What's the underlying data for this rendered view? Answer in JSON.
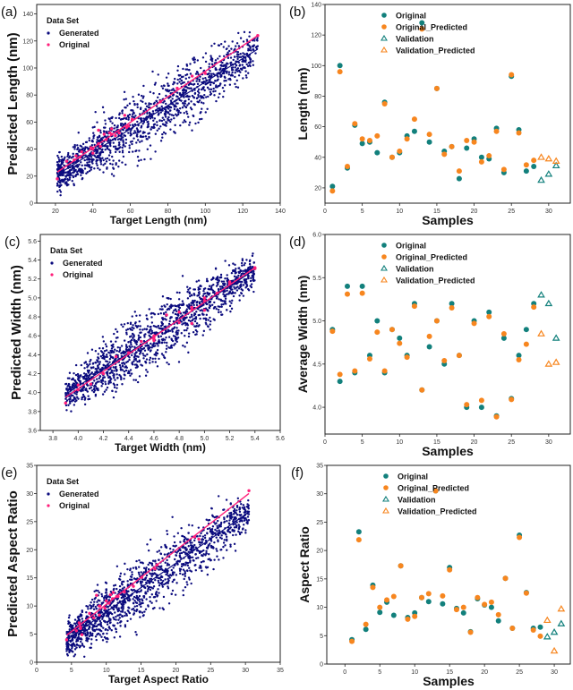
{
  "colors": {
    "original": "#12807c",
    "original_predicted": "#f7861f",
    "generated": "#0b0b7e",
    "original_fit": "#ff1f7a"
  },
  "chart_data": [
    {
      "panel": "(a)",
      "type": "scatter",
      "xlabel": "Target Length (nm)",
      "ylabel": "Predicted Length (nm)",
      "xlim": [
        10,
        140
      ],
      "ylim": [
        0,
        147
      ],
      "xticks": [
        20,
        40,
        60,
        80,
        100,
        120,
        140
      ],
      "yticks": [
        0,
        20,
        40,
        60,
        80,
        100,
        120,
        140
      ],
      "legend": {
        "title": "Data Set",
        "entries": [
          "Generated",
          "Original"
        ],
        "placement": "top-left"
      },
      "generated_fit": [
        [
          21,
          21
        ],
        [
          128,
          114
        ]
      ],
      "original_fit": [
        [
          21,
          23
        ],
        [
          128,
          124
        ]
      ],
      "source": "b"
    },
    {
      "panel": "(b)",
      "type": "scatter",
      "xlabel": "Samples",
      "ylabel": "Length (nm)",
      "xlim": [
        0,
        32.9
      ],
      "ylim": [
        10,
        140
      ],
      "xticks": [
        0,
        5,
        10,
        15,
        20,
        25,
        30
      ],
      "yticks": [
        20,
        40,
        60,
        80,
        100,
        120,
        140
      ],
      "legend": {
        "entries": [
          "Original",
          "Original_Predicted",
          "Validation",
          "Validation_Predicted"
        ],
        "placement": "top-right"
      },
      "original": [
        21,
        100,
        33,
        61,
        49,
        50,
        43,
        76,
        40,
        43,
        54,
        57,
        128,
        50,
        85,
        44,
        47,
        26,
        46,
        52,
        40,
        39,
        59,
        30,
        93,
        58,
        31,
        34
      ],
      "original_predicted": [
        18,
        96,
        34,
        62,
        52,
        51,
        54,
        75,
        40,
        44,
        52,
        65,
        124,
        55,
        85,
        42,
        47,
        31,
        51,
        50,
        37,
        41,
        57,
        32,
        94,
        56,
        35,
        38
      ],
      "validation": [
        25,
        29,
        34.5
      ],
      "validation_predicted": [
        40,
        39,
        37.5
      ]
    },
    {
      "panel": "(c)",
      "type": "scatter",
      "xlabel": "Target Width (nm)",
      "ylabel": "Predicted Width (nm)",
      "xlim": [
        3.7,
        5.6
      ],
      "ylim": [
        3.6,
        5.67
      ],
      "xticks": [
        3.8,
        4.0,
        4.2,
        4.4,
        4.6,
        4.8,
        5.0,
        5.2,
        5.4,
        5.6
      ],
      "yticks": [
        3.6,
        3.8,
        4.0,
        4.2,
        4.4,
        4.6,
        4.8,
        5.0,
        5.2,
        5.4,
        5.6
      ],
      "legend": {
        "title": "Data Set",
        "entries": [
          "Generated",
          "Original"
        ],
        "placement": "top-left"
      },
      "generated_fit": [
        [
          3.9,
          3.98
        ],
        [
          5.4,
          5.3
        ]
      ],
      "original_fit": [
        [
          3.9,
          3.95
        ],
        [
          5.4,
          5.32
        ]
      ],
      "source": "d"
    },
    {
      "panel": "(d)",
      "type": "scatter",
      "xlabel": "Samples",
      "ylabel": "Average Width (nm)",
      "xlim": [
        0,
        32.9
      ],
      "ylim": [
        3.69,
        6.0
      ],
      "xticks": [
        0,
        5,
        10,
        15,
        20,
        25,
        30
      ],
      "yticks": [
        4.0,
        4.5,
        5.0,
        5.5,
        6.0
      ],
      "legend": {
        "entries": [
          "Original",
          "Original_Predicted",
          "Validation",
          "Validation_Predicted"
        ],
        "placement": "top-right"
      },
      "original": [
        4.9,
        4.3,
        5.4,
        4.4,
        5.4,
        4.6,
        5.0,
        4.4,
        4.9,
        4.8,
        4.6,
        5.2,
        4.2,
        4.7,
        5.0,
        4.5,
        5.2,
        4.6,
        4.0,
        5.0,
        4.0,
        5.1,
        3.9,
        4.8,
        4.1,
        4.6,
        4.9,
        5.2
      ],
      "original_predicted": [
        4.88,
        4.38,
        5.31,
        4.42,
        5.32,
        4.56,
        4.87,
        4.42,
        4.9,
        4.74,
        4.58,
        5.17,
        4.2,
        4.82,
        5.0,
        4.54,
        5.15,
        4.6,
        4.03,
        4.97,
        4.08,
        5.05,
        3.89,
        4.85,
        4.09,
        4.55,
        4.73,
        5.16
      ],
      "validation": [
        5.3,
        5.2,
        4.8
      ],
      "validation_predicted": [
        4.85,
        4.5,
        4.52
      ]
    },
    {
      "panel": "(e)",
      "type": "scatter",
      "xlabel": "Target Aspect Ratio",
      "ylabel": "Predicted Aspect Ratio",
      "xlim": [
        0,
        35
      ],
      "ylim": [
        0,
        35
      ],
      "xticks": [
        0,
        5,
        10,
        15,
        20,
        25,
        30,
        35
      ],
      "yticks": [
        0,
        5,
        10,
        15,
        20,
        25,
        30,
        35
      ],
      "legend": {
        "title": "Data Set",
        "entries": [
          "Generated",
          "Original"
        ],
        "placement": "top-left"
      },
      "generated_fit": [
        [
          4.3,
          4
        ],
        [
          30.5,
          26.7
        ]
      ],
      "original_fit": [
        [
          4.3,
          4.8
        ],
        [
          30.5,
          30
        ]
      ],
      "source": "f"
    },
    {
      "panel": "(f)",
      "type": "scatter",
      "xlabel": "Samples",
      "ylabel": "Aspect Ratio",
      "xlim": [
        -2.6,
        32.3
      ],
      "ylim": [
        0,
        35
      ],
      "xticks": [
        0,
        5,
        10,
        15,
        20,
        25,
        30
      ],
      "yticks": [
        0,
        5,
        10,
        15,
        20,
        25,
        30,
        35
      ],
      "legend": {
        "entries": [
          "Original",
          "Original_Predicted",
          "Validation",
          "Validation_Predicted"
        ],
        "placement": "top-right"
      },
      "original": [
        4.3,
        23.3,
        6.1,
        13.9,
        9.1,
        10.9,
        8.6,
        17.3,
        8.2,
        9.0,
        11.7,
        11.0,
        30.5,
        10.6,
        17.0,
        9.8,
        9.0,
        5.7,
        11.5,
        10.4,
        10.0,
        7.6,
        15.1,
        6.3,
        22.7,
        12.6,
        6.3,
        6.5
      ],
      "original_predicted": [
        4.0,
        21.9,
        7.0,
        13.5,
        10.0,
        11.3,
        11.9,
        17.3,
        7.9,
        8.4,
        11.7,
        12.4,
        30.5,
        12.0,
        16.6,
        9.6,
        10.0,
        5.6,
        11.7,
        10.5,
        10.9,
        8.7,
        15.1,
        6.3,
        22.3,
        12.5,
        6.0,
        4.9
      ],
      "validation": [
        4.8,
        5.6,
        7.1
      ],
      "validation_predicted": [
        7.7,
        2.3,
        9.7
      ]
    }
  ]
}
